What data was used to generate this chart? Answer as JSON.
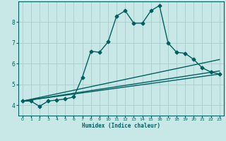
{
  "xlabel": "Humidex (Indice chaleur)",
  "xlim": [
    -0.5,
    23.5
  ],
  "ylim": [
    3.5,
    9.0
  ],
  "yticks": [
    4,
    5,
    6,
    7,
    8
  ],
  "xticks": [
    0,
    1,
    2,
    3,
    4,
    5,
    6,
    7,
    8,
    9,
    10,
    11,
    12,
    13,
    14,
    15,
    16,
    17,
    18,
    19,
    20,
    21,
    22,
    23
  ],
  "bg_color": "#c8e8e8",
  "grid_color": "#a8cccc",
  "line_color": "#006060",
  "series": [
    {
      "x": [
        0,
        1,
        2,
        3,
        4,
        5,
        6,
        7,
        8,
        9,
        10,
        11,
        12,
        13,
        14,
        15,
        16,
        17,
        18,
        19,
        20,
        21,
        22,
        23
      ],
      "y": [
        4.2,
        4.2,
        3.95,
        4.2,
        4.25,
        4.3,
        4.4,
        5.35,
        6.6,
        6.55,
        7.05,
        8.3,
        8.55,
        7.95,
        7.95,
        8.55,
        8.8,
        7.0,
        6.55,
        6.5,
        6.2,
        5.8,
        5.6,
        5.5
      ],
      "marker": "D",
      "markersize": 2.5,
      "linewidth": 1.0
    },
    {
      "x": [
        0,
        23
      ],
      "y": [
        4.2,
        5.5
      ],
      "marker": null,
      "markersize": 0,
      "linewidth": 1.0
    },
    {
      "x": [
        0,
        23
      ],
      "y": [
        4.2,
        5.65
      ],
      "marker": null,
      "markersize": 0,
      "linewidth": 1.0
    },
    {
      "x": [
        0,
        23
      ],
      "y": [
        4.2,
        6.2
      ],
      "marker": null,
      "markersize": 0,
      "linewidth": 1.0
    }
  ]
}
